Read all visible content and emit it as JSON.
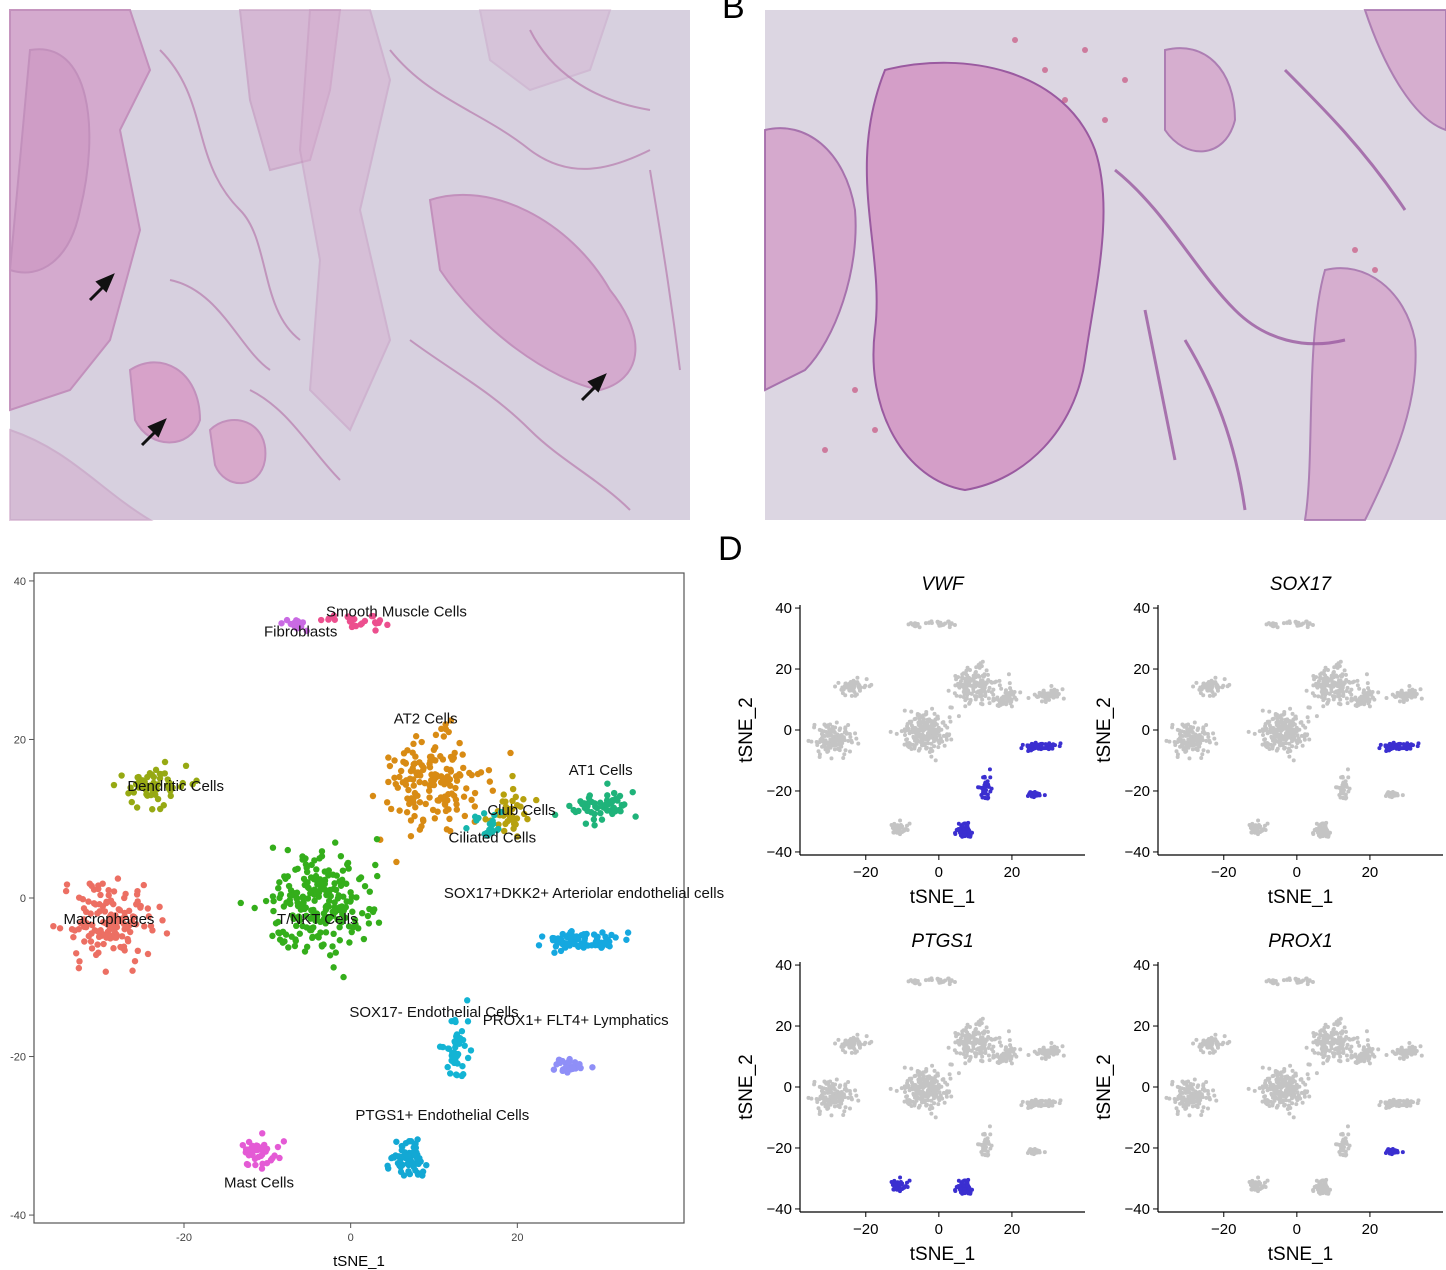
{
  "panels": {
    "a": {
      "letter": "",
      "image": "histology-low-magnification"
    },
    "b": {
      "letter": "B",
      "image": "histology-high-magnification"
    },
    "c": {
      "letter": ""
    },
    "d": {
      "letter": "D"
    }
  },
  "colors": {
    "tissue": "#c98fbd",
    "background": "#d6cfdf",
    "gray_point": "#c4c4c4",
    "expression_point": "#3b2fd0"
  },
  "chart_data": [
    {
      "type": "scatter",
      "panel": "C",
      "xlabel": "tSNE_1",
      "ylabel": "",
      "xlim": [
        -38,
        40
      ],
      "ylim": [
        -41,
        41
      ],
      "xticks": [
        -20,
        0,
        20
      ],
      "yticks": [
        -40,
        -20,
        0,
        20,
        40
      ],
      "xtick_labels": [
        "-20",
        "0",
        "20"
      ],
      "ytick_labels": [
        "-40",
        "-20",
        "0",
        "20",
        "40"
      ],
      "grid": false,
      "legend": "none",
      "clusters": [
        {
          "label": "Smooth Muscle Cells",
          "label_x": 5.5,
          "label_y": 35.5,
          "color": "#ec4f8e",
          "cx": 1,
          "cy": 35,
          "rx": 4,
          "ry": 1,
          "n": 25
        },
        {
          "label": "Fibroblasts",
          "label_x": -6,
          "label_y": 33,
          "color": "#c96ae3",
          "cx": -7,
          "cy": 34.5,
          "rx": 1.5,
          "ry": 1,
          "n": 15
        },
        {
          "label": "AT2 Cells",
          "label_x": 9,
          "label_y": 22,
          "color": "#d88b14",
          "cx": 10,
          "cy": 15,
          "rx": 6,
          "ry": 6,
          "n": 160
        },
        {
          "label": "AT1 Cells",
          "label_x": 30,
          "label_y": 15.5,
          "color": "#1fb37a",
          "cx": 30,
          "cy": 11.5,
          "rx": 4,
          "ry": 2,
          "n": 60
        },
        {
          "label": "Dendritic Cells",
          "label_x": -21,
          "label_y": 13.5,
          "color": "#96a913",
          "cx": -24,
          "cy": 14,
          "rx": 4,
          "ry": 2.5,
          "n": 60
        },
        {
          "label": "Club Cells",
          "label_x": 20.5,
          "label_y": 10.5,
          "color": "#b6a10e",
          "cx": 19,
          "cy": 11,
          "rx": 3,
          "ry": 3,
          "n": 40
        },
        {
          "label": "Ciliated Cells",
          "label_x": 17,
          "label_y": 7,
          "color": "#16b6ad",
          "cx": 17,
          "cy": 9,
          "rx": 2.5,
          "ry": 2,
          "n": 20
        },
        {
          "label": "Macrophages",
          "label_x": -29,
          "label_y": -3.3,
          "color": "#ec6f63",
          "cx": -29,
          "cy": -3,
          "rx": 5,
          "ry": 5,
          "n": 140
        },
        {
          "label": "T/NKT Cells",
          "label_x": -4,
          "label_y": -3.3,
          "color": "#34ae1b",
          "cx": -4,
          "cy": -1,
          "rx": 6,
          "ry": 7,
          "n": 220
        },
        {
          "label": "SOX17+DKK2+ Arteriolar endothelial cells",
          "label_x": 28,
          "label_y": 0,
          "color": "#15a8e0",
          "cx": 28,
          "cy": -5.5,
          "rx": 4.5,
          "ry": 1.2,
          "n": 70
        },
        {
          "label": "SOX17- Endothelial Cells",
          "label_x": 10,
          "label_y": -15,
          "color": "#13b4d4",
          "cx": 12.5,
          "cy": -19,
          "rx": 1.5,
          "ry": 4,
          "n": 50
        },
        {
          "label": "PROX1+ FLT4+ Lymphatics",
          "label_x": 27,
          "label_y": -16,
          "color": "#8f8ff7",
          "cx": 26,
          "cy": -21,
          "rx": 2,
          "ry": 1,
          "n": 25
        },
        {
          "label": "PTGS1+ Endothelial Cells",
          "label_x": 11,
          "label_y": -28,
          "color": "#13a8d4",
          "cx": 7,
          "cy": -33,
          "rx": 2,
          "ry": 2.5,
          "n": 60
        },
        {
          "label": "Mast Cells",
          "label_x": -11,
          "label_y": -36.5,
          "color": "#e45ad5",
          "cx": -11,
          "cy": -32,
          "rx": 2,
          "ry": 2,
          "n": 45
        }
      ]
    },
    {
      "type": "scatter",
      "panel": "D",
      "layout": "2x2 facets",
      "xlabel": "tSNE_1",
      "ylabel": "tSNE_2",
      "xlim": [
        -38,
        40
      ],
      "ylim": [
        -41,
        41
      ],
      "xticks": [
        -20,
        0,
        20
      ],
      "yticks": [
        -40,
        -20,
        0,
        20,
        40
      ],
      "xtick_labels": [
        "−20",
        "0",
        "20"
      ],
      "ytick_labels": [
        "−40",
        "−20",
        "0",
        "20",
        "40"
      ],
      "grid": false,
      "legend": "none",
      "facets": [
        {
          "title": "VWF",
          "highlight_clusters": [
            "SOX17+DKK2+ Arteriolar endothelial cells",
            "SOX17- Endothelial Cells",
            "PTGS1+ Endothelial Cells",
            "PROX1+ FLT4+ Lymphatics"
          ]
        },
        {
          "title": "SOX17",
          "highlight_clusters": [
            "SOX17+DKK2+ Arteriolar endothelial cells"
          ]
        },
        {
          "title": "PTGS1",
          "highlight_clusters": [
            "PTGS1+ Endothelial Cells",
            "Mast Cells"
          ]
        },
        {
          "title": "PROX1",
          "highlight_clusters": [
            "PROX1+ FLT4+ Lymphatics"
          ]
        }
      ]
    }
  ]
}
